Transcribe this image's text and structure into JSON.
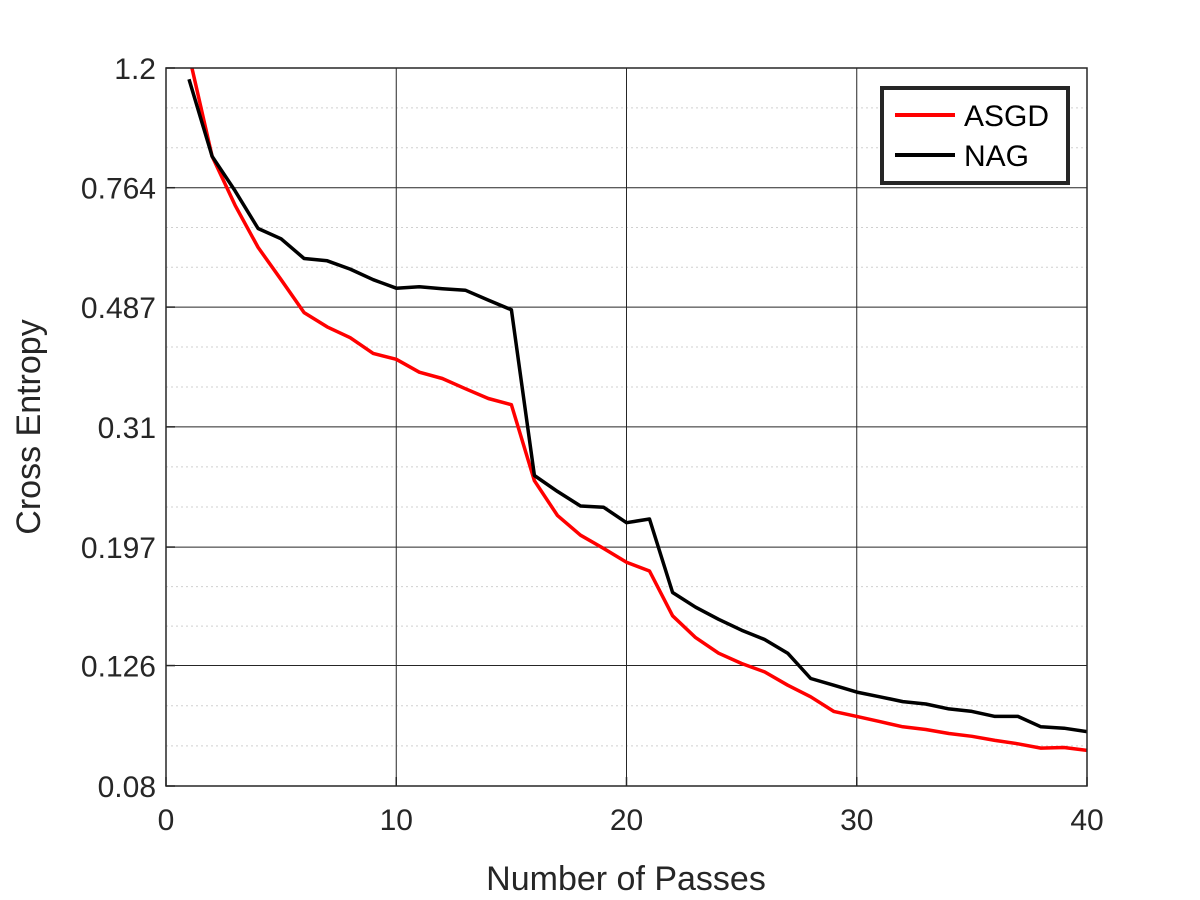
{
  "chart_data": {
    "type": "line",
    "xlabel": "Number of Passes",
    "ylabel": "Cross Entropy",
    "xlim": [
      0,
      40
    ],
    "ylim": [
      0.08,
      1.2
    ],
    "yscale": "log",
    "grid": true,
    "minor_grid": true,
    "legend_position": "top-right",
    "xticks": [
      0,
      10,
      20,
      30,
      40
    ],
    "xtick_labels": [
      "0",
      "10",
      "20",
      "30",
      "40"
    ],
    "yticks": [
      0.08,
      0.126,
      0.197,
      0.31,
      0.487,
      0.764,
      1.2
    ],
    "ytick_labels": [
      "0.08",
      "0.126",
      "0.197",
      "0.31",
      "0.487",
      "0.764",
      "1.2"
    ],
    "series": [
      {
        "name": "ASGD",
        "color": "#ff0000",
        "x": [
          1,
          2,
          3,
          4,
          5,
          6,
          7,
          8,
          9,
          10,
          11,
          12,
          13,
          14,
          15,
          16,
          17,
          18,
          19,
          20,
          21,
          22,
          23,
          24,
          25,
          26,
          27,
          28,
          29,
          30,
          31,
          32,
          33,
          34,
          35,
          36,
          37,
          38,
          39,
          40
        ],
        "values": [
          1.26,
          0.86,
          0.715,
          0.61,
          0.54,
          0.477,
          0.452,
          0.434,
          0.409,
          0.4,
          0.381,
          0.372,
          0.358,
          0.345,
          0.337,
          0.253,
          0.222,
          0.206,
          0.196,
          0.186,
          0.18,
          0.152,
          0.14,
          0.132,
          0.127,
          0.123,
          0.117,
          0.112,
          0.106,
          0.104,
          0.102,
          0.1,
          0.099,
          0.0975,
          0.0965,
          0.095,
          0.0938,
          0.0923,
          0.0925,
          0.0915
        ]
      },
      {
        "name": "NAG",
        "color": "#000000",
        "x": [
          1,
          2,
          3,
          4,
          5,
          6,
          7,
          8,
          9,
          10,
          11,
          12,
          13,
          14,
          15,
          16,
          17,
          18,
          19,
          20,
          21,
          22,
          23,
          24,
          25,
          26,
          27,
          28,
          29,
          30,
          31,
          32,
          33,
          34,
          35,
          36,
          37,
          38,
          39,
          40
        ],
        "values": [
          1.15,
          0.86,
          0.755,
          0.655,
          0.63,
          0.585,
          0.58,
          0.562,
          0.54,
          0.523,
          0.526,
          0.522,
          0.519,
          0.5,
          0.482,
          0.258,
          0.243,
          0.23,
          0.229,
          0.216,
          0.219,
          0.166,
          0.157,
          0.15,
          0.144,
          0.139,
          0.132,
          0.12,
          0.117,
          0.114,
          0.112,
          0.11,
          0.109,
          0.107,
          0.106,
          0.104,
          0.104,
          0.1,
          0.0995,
          0.0982
        ]
      }
    ]
  }
}
